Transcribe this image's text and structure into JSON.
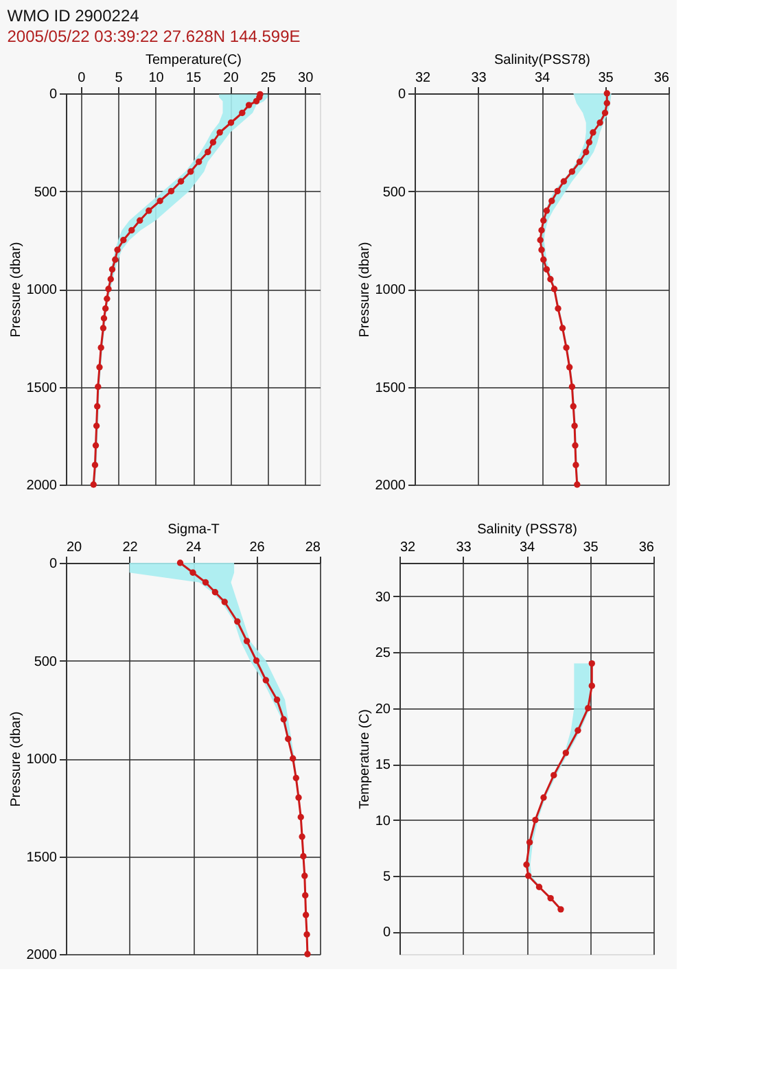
{
  "chart_data": [
    {
      "type": "line",
      "orientation": "horizontal",
      "title": "WMO ID 2900224",
      "subtitle": "2005/05/22 03:39:22   27.628N   144.599E",
      "xlabel": "Temperature(C)",
      "ylabel": "Pressure (dbar)",
      "xlim": [
        -2,
        32
      ],
      "xticks": [
        0,
        5,
        10,
        15,
        20,
        25,
        30
      ],
      "ylim": [
        2000,
        0
      ],
      "yticks": [
        0,
        500,
        1000,
        1500,
        2000
      ],
      "grid": true,
      "marker": "circle",
      "line_style": "solid",
      "series": [
        {
          "color": "#cc1a1a",
          "values": [
            24.0,
            23.9,
            23.5,
            22.5,
            21.6,
            20.1,
            18.6,
            17.7,
            17.0,
            15.8,
            14.7,
            13.4,
            12.1,
            10.6,
            9.1,
            7.9,
            6.8,
            5.7,
            4.9,
            4.6,
            4.2,
            4.0,
            3.7,
            3.5,
            3.3,
            3.1,
            3.0,
            2.7,
            2.5,
            2.3,
            2.2,
            2.1,
            2.0,
            1.9,
            1.7
          ],
          "x": [
            5,
            20,
            40,
            60,
            100,
            150,
            200,
            250,
            300,
            350,
            400,
            450,
            500,
            550,
            600,
            650,
            700,
            750,
            800,
            850,
            900,
            950,
            1000,
            1050,
            1100,
            1150,
            1200,
            1300,
            1400,
            1500,
            1600,
            1700,
            1800,
            1900,
            2000
          ],
          "lower": [
            18.5,
            18.5,
            19.0,
            19.0,
            19.0,
            18.5,
            17.5,
            16.8,
            16.0,
            15.0,
            14.0,
            12.5,
            11.0,
            9.5,
            8.0,
            6.5,
            5.5,
            5.0,
            4.6,
            4.3,
            4.0,
            3.8,
            3.6,
            3.4,
            3.2,
            3.0,
            2.9,
            2.6,
            2.4,
            2.2,
            2.1,
            2.0,
            1.9,
            1.8,
            1.6
          ],
          "upper": [
            25.0,
            25.0,
            24.5,
            23.5,
            23.0,
            21.5,
            20.0,
            19.0,
            18.0,
            17.0,
            16.5,
            15.5,
            14.5,
            13.0,
            11.5,
            10.0,
            8.0,
            6.5,
            5.5,
            5.0,
            4.6,
            4.3,
            4.0,
            3.7,
            3.5,
            3.3,
            3.2,
            2.9,
            2.7,
            2.5,
            2.4,
            2.3,
            2.2,
            2.1,
            1.9
          ]
        }
      ]
    },
    {
      "type": "line",
      "orientation": "horizontal",
      "xlabel": "Salinity(PSS78)",
      "ylabel": "Pressure (dbar)",
      "xlim": [
        32,
        36
      ],
      "xticks": [
        32,
        33,
        34,
        35,
        36
      ],
      "ylim": [
        2000,
        0
      ],
      "yticks": [
        0,
        500,
        1000,
        1500,
        2000
      ],
      "grid": true,
      "marker": "circle",
      "line_style": "solid",
      "series": [
        {
          "color": "#cc1a1a",
          "values": [
            35.03,
            35.03,
            35.0,
            34.92,
            34.81,
            34.75,
            34.7,
            34.6,
            34.48,
            34.35,
            34.25,
            34.16,
            34.08,
            34.03,
            34.0,
            33.98,
            34.0,
            34.03,
            34.08,
            34.14,
            34.2,
            34.26,
            34.33,
            34.39,
            34.44,
            34.48,
            34.5,
            34.52,
            34.53,
            34.54,
            34.56
          ],
          "x": [
            0,
            50,
            100,
            150,
            200,
            250,
            300,
            350,
            400,
            450,
            500,
            550,
            600,
            650,
            700,
            750,
            800,
            850,
            900,
            950,
            1000,
            1100,
            1200,
            1300,
            1400,
            1500,
            1600,
            1700,
            1800,
            1900,
            2000
          ],
          "lower": [
            34.5,
            34.55,
            34.65,
            34.7,
            34.7,
            34.68,
            34.62,
            34.55,
            34.45,
            34.32,
            34.2,
            34.12,
            34.06,
            34.02,
            34.0,
            33.98,
            34.0,
            34.03,
            34.08,
            34.14,
            34.2,
            34.26,
            34.33,
            34.39,
            34.44,
            34.48,
            34.5,
            34.52,
            34.53,
            34.54,
            34.56
          ],
          "upper": [
            35.1,
            35.08,
            35.05,
            34.98,
            34.92,
            34.88,
            34.82,
            34.72,
            34.6,
            34.48,
            34.38,
            34.28,
            34.18,
            34.1,
            34.06,
            34.04,
            34.06,
            34.08,
            34.12,
            34.17,
            34.22,
            34.28,
            34.35,
            34.41,
            34.46,
            34.5,
            34.52,
            34.54,
            34.55,
            34.56,
            34.58
          ]
        }
      ]
    },
    {
      "type": "line",
      "orientation": "horizontal",
      "xlabel": "Sigma-T",
      "ylabel": "Pressure (dbar)",
      "xlim": [
        20,
        28
      ],
      "xticks": [
        20,
        22,
        24,
        26,
        28
      ],
      "ylim": [
        2000,
        0
      ],
      "yticks": [
        0,
        500,
        1000,
        1500,
        2000
      ],
      "grid": true,
      "marker": "circle",
      "line_style": "solid",
      "series": [
        {
          "color": "#cc1a1a",
          "values": [
            23.6,
            24.0,
            24.4,
            24.7,
            25.0,
            25.4,
            25.7,
            26.0,
            26.3,
            26.65,
            26.86,
            27.0,
            27.15,
            27.25,
            27.33,
            27.4,
            27.44,
            27.48,
            27.52,
            27.54,
            27.56,
            27.59,
            27.61
          ],
          "x": [
            0,
            50,
            100,
            150,
            200,
            300,
            400,
            500,
            600,
            700,
            800,
            900,
            1000,
            1100,
            1200,
            1300,
            1400,
            1500,
            1600,
            1700,
            1800,
            1900,
            2000
          ],
          "lower": [
            22.0,
            22.0,
            24.2,
            24.6,
            24.9,
            25.3,
            25.5,
            25.8,
            26.2,
            26.5,
            26.8,
            26.98,
            27.13,
            27.23,
            27.31,
            27.38,
            27.42,
            27.46,
            27.5,
            27.52,
            27.54,
            27.57,
            27.59
          ],
          "upper": [
            25.3,
            25.3,
            25.2,
            25.3,
            25.4,
            25.6,
            25.8,
            26.3,
            26.6,
            26.9,
            27.0,
            27.1,
            27.2,
            27.28,
            27.36,
            27.42,
            27.46,
            27.5,
            27.54,
            27.56,
            27.58,
            27.61,
            27.63
          ]
        }
      ]
    },
    {
      "type": "line",
      "orientation": "horizontal",
      "xlabel": "Salinity (PSS78)",
      "ylabel": "Temperature (C)",
      "xlim": [
        32,
        36
      ],
      "xticks": [
        32,
        33,
        34,
        35,
        36
      ],
      "ylim": [
        -2,
        33
      ],
      "yticks": [
        0,
        5,
        10,
        15,
        20,
        25,
        30
      ],
      "grid": true,
      "marker": "circle",
      "line_style": "solid",
      "series": [
        {
          "color": "#cc1a1a",
          "values": [
            35.03,
            35.03,
            34.97,
            34.81,
            34.62,
            34.43,
            34.27,
            34.14,
            34.05,
            34.0,
            34.03,
            34.2,
            34.38,
            34.54
          ],
          "x": [
            24,
            22,
            20,
            18,
            16,
            14,
            12,
            10,
            8,
            6,
            5,
            4,
            3,
            2
          ],
          "lower": [
            34.75,
            34.75,
            34.75,
            34.7,
            34.6,
            34.43,
            34.27,
            34.14,
            34.06,
            34.02,
            34.05,
            34.2,
            34.38,
            34.54
          ],
          "upper": [
            35.0,
            35.0,
            35.0,
            34.85,
            34.66,
            34.47,
            34.3,
            34.18,
            34.1,
            34.06,
            34.08,
            34.22,
            34.4,
            34.56
          ]
        }
      ]
    }
  ]
}
